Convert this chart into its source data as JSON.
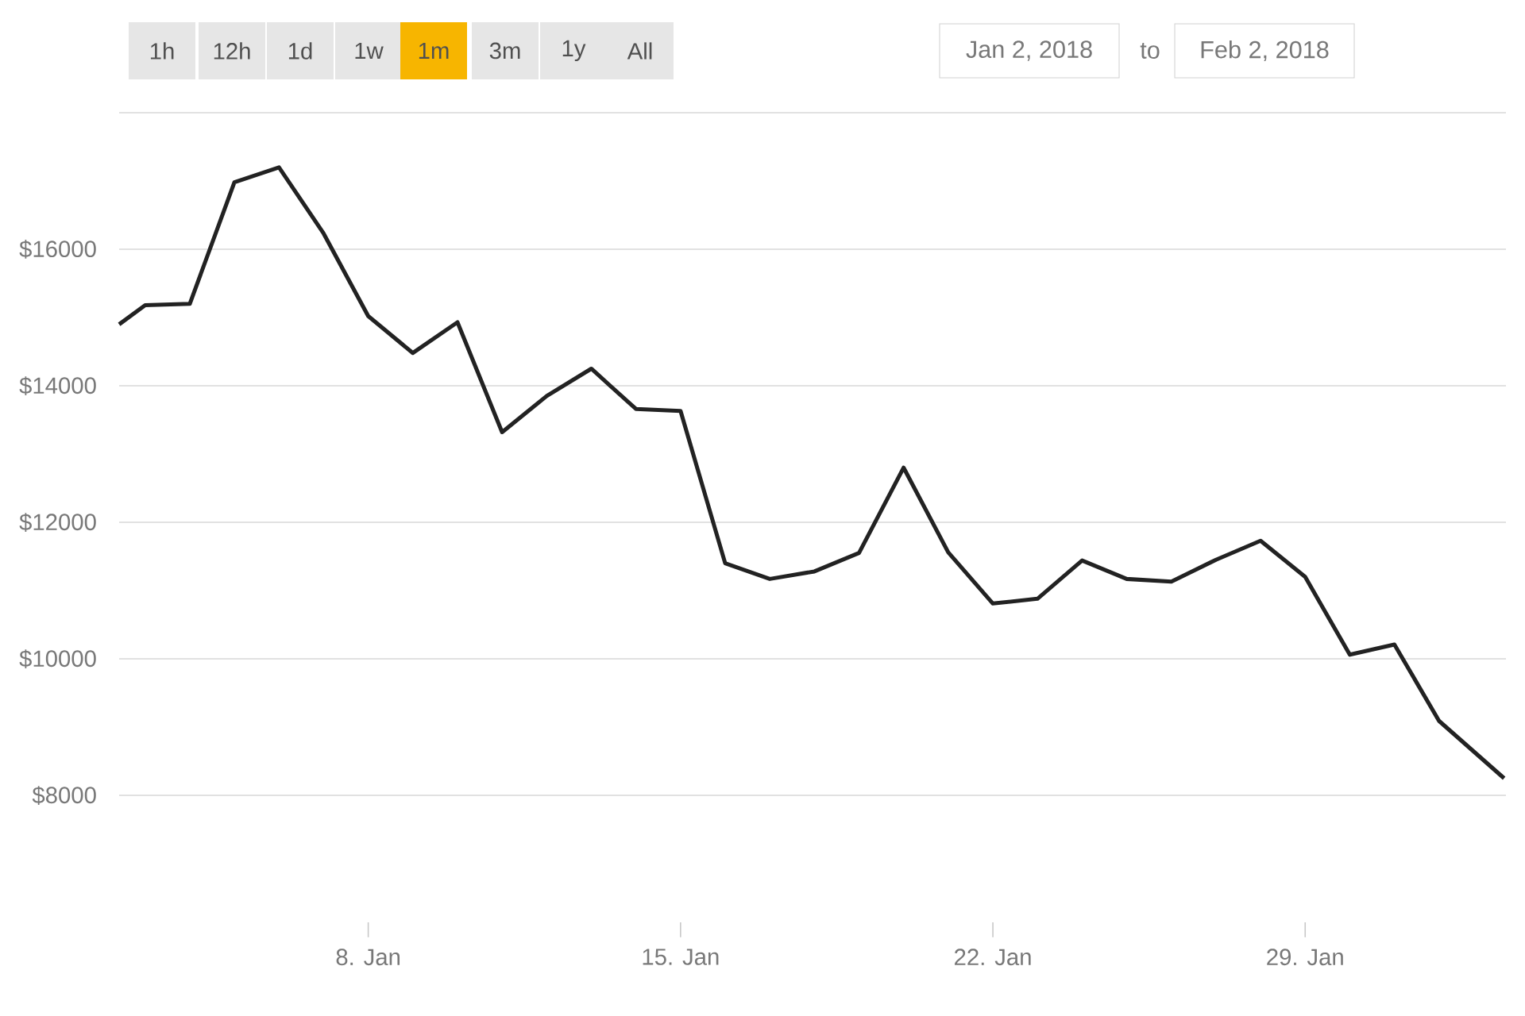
{
  "chart_data": {
    "type": "line",
    "x": [
      "2018-01-02T10:00",
      "2018-01-03",
      "2018-01-04",
      "2018-01-05",
      "2018-01-06",
      "2018-01-07",
      "2018-01-08",
      "2018-01-09",
      "2018-01-10",
      "2018-01-11",
      "2018-01-12",
      "2018-01-13",
      "2018-01-14",
      "2018-01-15",
      "2018-01-16",
      "2018-01-17",
      "2018-01-18",
      "2018-01-19",
      "2018-01-20",
      "2018-01-21",
      "2018-01-22",
      "2018-01-23",
      "2018-01-24",
      "2018-01-25",
      "2018-01-26",
      "2018-01-27",
      "2018-01-28",
      "2018-01-29",
      "2018-01-30",
      "2018-01-31",
      "2018-02-01",
      "2018-02-02T11:00"
    ],
    "series": [
      {
        "color": "#222222",
        "values": [
          14900,
          15180,
          15200,
          16980,
          17200,
          16230,
          15020,
          14480,
          14930,
          13320,
          13850,
          14250,
          13660,
          13630,
          11400,
          11170,
          11280,
          11550,
          12800,
          11560,
          10810,
          10880,
          11440,
          11170,
          11130,
          11450,
          11730,
          11200,
          10060,
          10210,
          9090,
          8250
        ]
      }
    ],
    "xlim": [
      "2018-01-02T10:00",
      "2018-02-02T12:00"
    ],
    "xticks": [
      {
        "value": "2018-01-08",
        "label": "8. Jan"
      },
      {
        "value": "2018-01-15",
        "label": "15. Jan"
      },
      {
        "value": "2018-01-22",
        "label": "22. Jan"
      },
      {
        "value": "2018-01-29",
        "label": "29. Jan"
      }
    ],
    "ylim": [
      8000,
      18000
    ],
    "yticks": [
      {
        "value": 8000,
        "label": "$8000"
      },
      {
        "value": 10000,
        "label": "$10000"
      },
      {
        "value": 12000,
        "label": "$12000"
      },
      {
        "value": 14000,
        "label": "$14000"
      },
      {
        "value": 16000,
        "label": "$16000"
      },
      {
        "value": 18000,
        "label": null
      }
    ],
    "grid": "y",
    "annotations": [
      "1h",
      "12h",
      "1d",
      "1w",
      "1m",
      "3m",
      "1y",
      "All",
      "Jan 2, 2018",
      "to",
      "Feb 2, 2018"
    ]
  }
}
